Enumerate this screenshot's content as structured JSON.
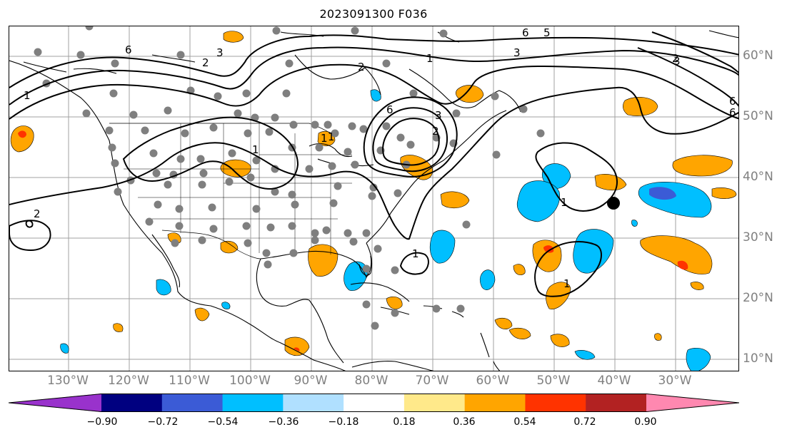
{
  "title": "2023091300 F036",
  "colors": {
    "land_outline": "#000000",
    "grid": "#a0a0a0",
    "contour": "#000000",
    "station": "#7f7f7f",
    "storm_marker": "#000000",
    "orange": "#ffa500",
    "red": "#ff3300",
    "lightblue": "#00bfff",
    "blue": "#3b5bd6"
  },
  "latitude_labels": [
    "60°N",
    "50°N",
    "40°N",
    "30°N",
    "20°N",
    "10°N"
  ],
  "longitude_labels": [
    "130°W",
    "120°W",
    "110°W",
    "100°W",
    "90°W",
    "80°W",
    "70°W",
    "60°W",
    "50°W",
    "40°W",
    "30°W"
  ],
  "contour_labels": [
    "6",
    "3",
    "2",
    "1",
    "6",
    "5",
    "3",
    "2",
    "1",
    "2",
    "1",
    "6",
    "3",
    "2",
    "1",
    "6",
    "2",
    "1",
    "1",
    "1",
    "6",
    "3",
    "1"
  ],
  "colorbar": {
    "ticks": [
      "−0.90",
      "−0.72",
      "−0.54",
      "−0.36",
      "−0.18",
      "0.18",
      "0.36",
      "0.54",
      "0.72",
      "0.90"
    ],
    "colors": [
      "#9932cc",
      "#000080",
      "#3b5bd6",
      "#00bfff",
      "#b0e0ff",
      "#ffffff",
      "#ffe98a",
      "#ffa500",
      "#ff3300",
      "#b22222",
      "#ff88b0"
    ]
  }
}
